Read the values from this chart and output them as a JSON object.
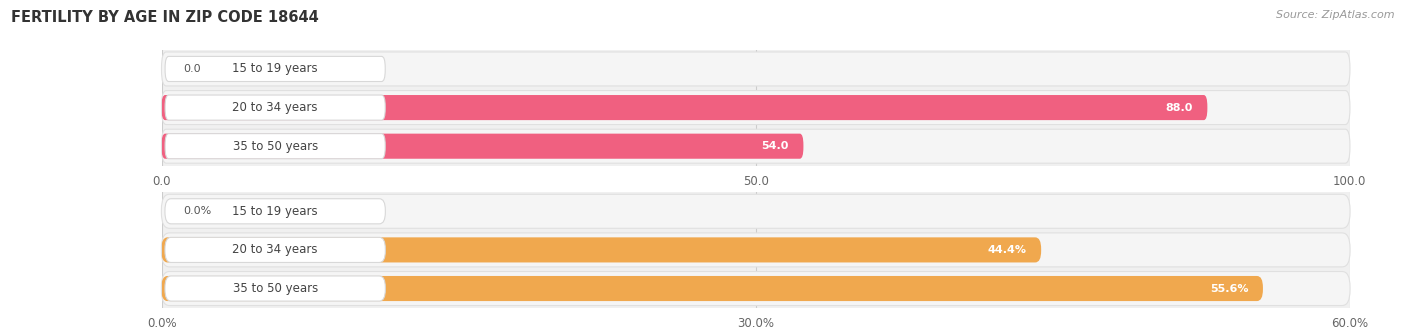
{
  "title": "FERTILITY BY AGE IN ZIP CODE 18644",
  "source": "Source: ZipAtlas.com",
  "top_chart": {
    "categories": [
      "15 to 19 years",
      "20 to 34 years",
      "35 to 50 years"
    ],
    "values": [
      0.0,
      88.0,
      54.0
    ],
    "xlim": [
      0,
      100
    ],
    "xticks": [
      0.0,
      50.0,
      100.0
    ],
    "xtick_labels": [
      "0.0",
      "50.0",
      "100.0"
    ],
    "bar_color": "#f06080",
    "bar_bg_color": "#f5dde5",
    "value_labels": [
      "0.0",
      "88.0",
      "54.0"
    ],
    "label_inside": [
      false,
      true,
      true
    ]
  },
  "bottom_chart": {
    "categories": [
      "15 to 19 years",
      "20 to 34 years",
      "35 to 50 years"
    ],
    "values": [
      0.0,
      44.4,
      55.6
    ],
    "xlim": [
      0,
      60
    ],
    "xticks": [
      0.0,
      30.0,
      60.0
    ],
    "xtick_labels": [
      "0.0%",
      "30.0%",
      "60.0%"
    ],
    "bar_color": "#f0a84e",
    "bar_bg_color": "#f5e8d0",
    "value_labels": [
      "0.0%",
      "44.4%",
      "55.6%"
    ],
    "label_inside": [
      false,
      true,
      true
    ]
  },
  "row_bg_color": "#ebebeb",
  "pill_bg_color": "#ffffff",
  "pill_border_color": "#e0e0e0",
  "label_color": "#555555",
  "title_color": "#333333",
  "title_fontsize": 10.5,
  "axis_fontsize": 8.5,
  "bar_label_fontsize": 8,
  "category_fontsize": 8.5,
  "source_fontsize": 8
}
